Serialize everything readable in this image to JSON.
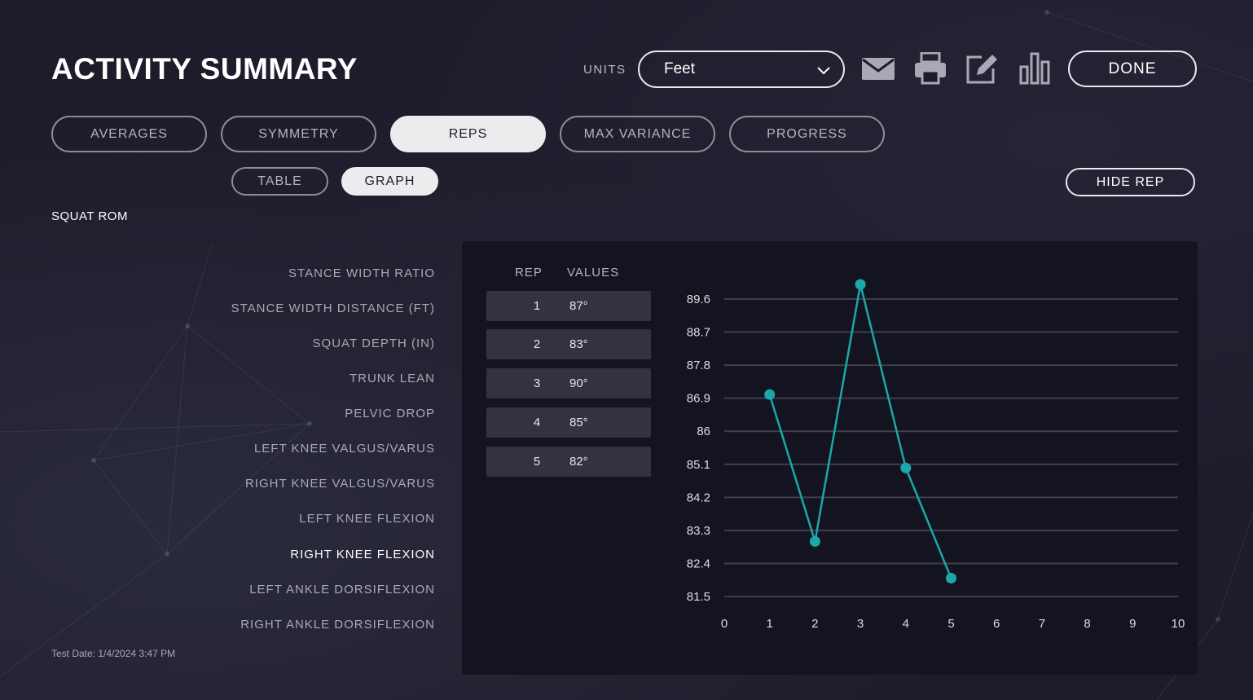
{
  "header": {
    "title": "ACTIVITY SUMMARY",
    "units_label": "UNITS",
    "units_value": "Feet",
    "done_label": "DONE",
    "icons": [
      "mail-icon",
      "printer-icon",
      "edit-icon",
      "bar-chart-icon"
    ]
  },
  "tabs": [
    {
      "label": "AVERAGES",
      "active": false
    },
    {
      "label": "SYMMETRY",
      "active": false
    },
    {
      "label": "REPS",
      "active": true
    },
    {
      "label": "MAX VARIANCE",
      "active": false
    },
    {
      "label": "PROGRESS",
      "active": false
    }
  ],
  "subtabs": [
    {
      "label": "TABLE",
      "active": false
    },
    {
      "label": "GRAPH",
      "active": true
    }
  ],
  "hide_rep_label": "HIDE REP",
  "section_label": "SQUAT ROM",
  "metrics": [
    {
      "label": "STANCE WIDTH RATIO",
      "selected": false
    },
    {
      "label": "STANCE WIDTH DISTANCE (FT)",
      "selected": false
    },
    {
      "label": "SQUAT DEPTH (IN)",
      "selected": false
    },
    {
      "label": "TRUNK LEAN",
      "selected": false
    },
    {
      "label": "PELVIC DROP",
      "selected": false
    },
    {
      "label": "LEFT KNEE VALGUS/VARUS",
      "selected": false
    },
    {
      "label": "RIGHT KNEE VALGUS/VARUS",
      "selected": false
    },
    {
      "label": "LEFT KNEE FLEXION",
      "selected": false
    },
    {
      "label": "RIGHT KNEE FLEXION",
      "selected": true
    },
    {
      "label": "LEFT ANKLE DORSIFLEXION",
      "selected": false
    },
    {
      "label": "RIGHT ANKLE DORSIFLEXION",
      "selected": false
    }
  ],
  "test_date": "Test Date: 1/4/2024 3:47 PM",
  "table": {
    "headers": {
      "rep": "REP",
      "values": "VALUES"
    },
    "rows": [
      {
        "rep": "1",
        "value": "87°"
      },
      {
        "rep": "2",
        "value": "83°"
      },
      {
        "rep": "3",
        "value": "90°"
      },
      {
        "rep": "4",
        "value": "85°"
      },
      {
        "rep": "5",
        "value": "82°"
      }
    ]
  },
  "colors": {
    "accent": "#1aa8a8",
    "background": "#1c1c2a",
    "panel": "#141420"
  },
  "chart_data": {
    "type": "line",
    "title": "",
    "xlabel": "",
    "ylabel": "",
    "x_ticks": [
      "0",
      "1",
      "2",
      "3",
      "4",
      "5",
      "6",
      "7",
      "8",
      "9",
      "10"
    ],
    "y_ticks": [
      "89.6",
      "88.7",
      "87.8",
      "86.9",
      "86",
      "85.1",
      "84.2",
      "83.3",
      "82.4",
      "81.5"
    ],
    "xlim": [
      0,
      10
    ],
    "ylim": [
      81.5,
      89.6
    ],
    "grid": true,
    "series": [
      {
        "name": "Right Knee Flexion",
        "x": [
          1,
          2,
          3,
          4,
          5
        ],
        "values": [
          87,
          83,
          90,
          85,
          82
        ]
      }
    ]
  }
}
